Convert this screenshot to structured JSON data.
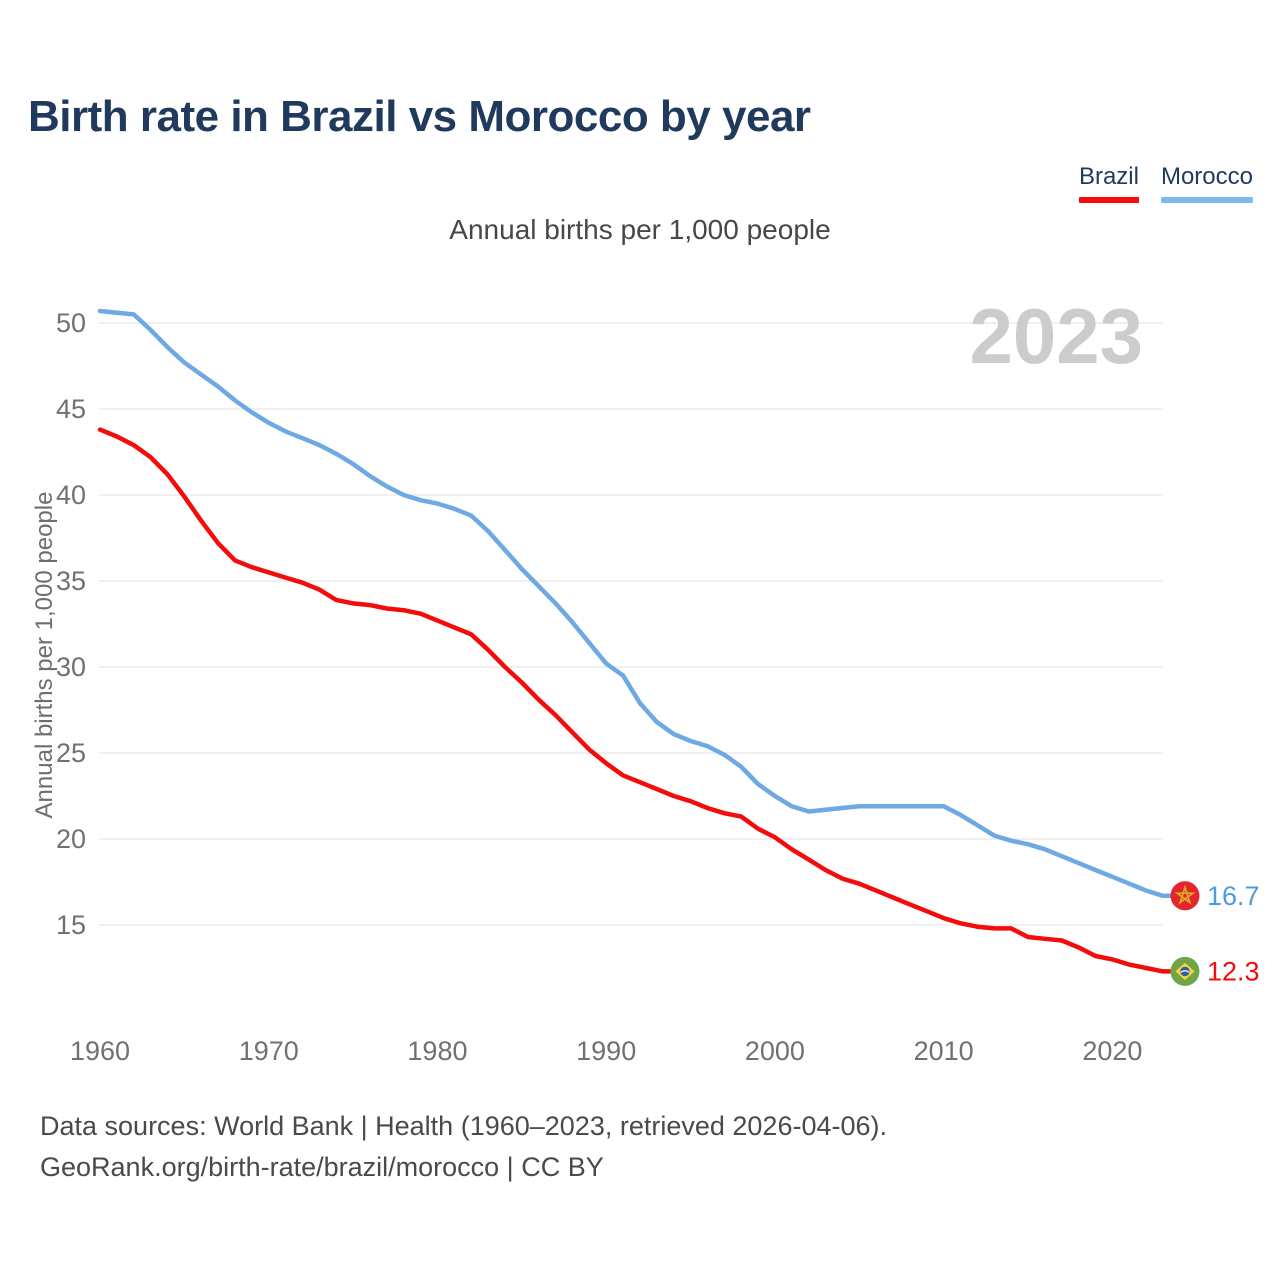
{
  "page": {
    "title": "Birth rate in Brazil vs Morocco by year",
    "subtitle": "Annual births per 1,000 people",
    "footer_line1": "Data sources: World Bank | Health (1960–2023, retrieved 2026-04-06).",
    "footer_line2": "GeoRank.org/birth-rate/brazil/morocco | CC BY"
  },
  "legend": {
    "items": [
      {
        "label": "Brazil",
        "color": "#f40b0b"
      },
      {
        "label": "Morocco",
        "color": "#7db9ec"
      }
    ]
  },
  "colors": {
    "brazil_line": "#f40b0b",
    "morocco_line": "#6ea9e4",
    "title_navy": "#1f3a5c",
    "watermark_gray": "#cccccc",
    "gridline": "#ebebeb",
    "tick_text": "#717171"
  },
  "chart_data": {
    "type": "line",
    "title": "Birth rate in Brazil vs Morocco by year",
    "subtitle": "Annual births per 1,000 people",
    "xlabel": "",
    "ylabel": "Annual births per 1,000 people",
    "watermark": "2023",
    "grid": true,
    "legend_position": "top-right",
    "x_ticks": [
      1960,
      1970,
      1980,
      1990,
      2000,
      2010,
      2020
    ],
    "y_ticks": [
      15,
      20,
      25,
      30,
      35,
      40,
      45,
      50
    ],
    "xlim": [
      1960,
      2023
    ],
    "ylim": [
      11,
      52
    ],
    "x": [
      1960,
      1961,
      1962,
      1963,
      1964,
      1965,
      1966,
      1967,
      1968,
      1969,
      1970,
      1971,
      1972,
      1973,
      1974,
      1975,
      1976,
      1977,
      1978,
      1979,
      1980,
      1981,
      1982,
      1983,
      1984,
      1985,
      1986,
      1987,
      1988,
      1989,
      1990,
      1991,
      1992,
      1993,
      1994,
      1995,
      1996,
      1997,
      1998,
      1999,
      2000,
      2001,
      2002,
      2003,
      2004,
      2005,
      2006,
      2007,
      2008,
      2009,
      2010,
      2011,
      2012,
      2013,
      2014,
      2015,
      2016,
      2017,
      2018,
      2019,
      2020,
      2021,
      2022,
      2023
    ],
    "series": [
      {
        "name": "Morocco",
        "color": "#6ea9e4",
        "end_label": "16.7",
        "end_label_color": "#4f9be0",
        "flag": "morocco",
        "values": [
          50.7,
          50.6,
          50.5,
          49.6,
          48.6,
          47.7,
          47.0,
          46.3,
          45.5,
          44.8,
          44.2,
          43.7,
          43.3,
          42.9,
          42.4,
          41.8,
          41.1,
          40.5,
          40.0,
          39.7,
          39.5,
          39.2,
          38.8,
          37.9,
          36.8,
          35.7,
          34.7,
          33.7,
          32.6,
          31.4,
          30.2,
          29.5,
          27.9,
          26.8,
          26.1,
          25.7,
          25.4,
          24.9,
          24.2,
          23.2,
          22.5,
          21.9,
          21.6,
          21.7,
          21.8,
          21.9,
          21.9,
          21.9,
          21.9,
          21.9,
          21.9,
          21.4,
          20.8,
          20.2,
          19.9,
          19.7,
          19.4,
          19.0,
          18.6,
          18.2,
          17.8,
          17.4,
          17.0,
          16.7
        ]
      },
      {
        "name": "Brazil",
        "color": "#f40b0b",
        "end_label": "12.3",
        "end_label_color": "#f40b0b",
        "flag": "brazil",
        "values": [
          43.8,
          43.4,
          42.9,
          42.2,
          41.2,
          39.9,
          38.5,
          37.2,
          36.2,
          35.8,
          35.5,
          35.2,
          34.9,
          34.5,
          33.9,
          33.7,
          33.6,
          33.4,
          33.3,
          33.1,
          32.7,
          32.3,
          31.9,
          31.0,
          30.0,
          29.1,
          28.1,
          27.2,
          26.2,
          25.2,
          24.4,
          23.7,
          23.3,
          22.9,
          22.5,
          22.2,
          21.8,
          21.5,
          21.3,
          20.6,
          20.1,
          19.4,
          18.8,
          18.2,
          17.7,
          17.4,
          17.0,
          16.6,
          16.2,
          15.8,
          15.4,
          15.1,
          14.9,
          14.8,
          14.8,
          14.3,
          14.2,
          14.1,
          13.7,
          13.2,
          13.0,
          12.7,
          12.5,
          12.3
        ]
      }
    ]
  }
}
